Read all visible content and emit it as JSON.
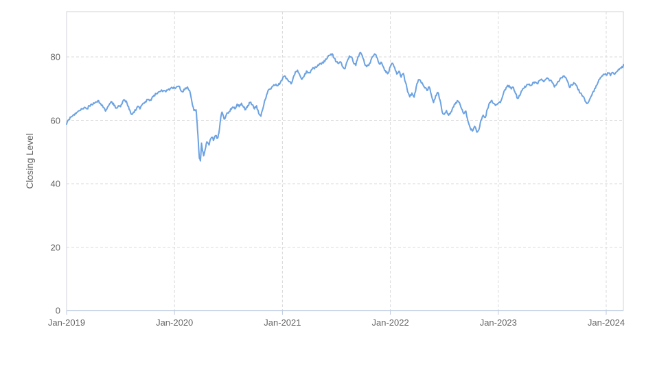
{
  "page": {
    "background": "#ffffff"
  },
  "chart_data": {
    "type": "line",
    "title": "",
    "xlabel": "",
    "ylabel": "Closing Level",
    "series_name": "Closing Level",
    "line_color": "#6ca2e2",
    "grid": "dashed",
    "grid_color": "#d9d9d9",
    "border_color": "#cfd3da",
    "axis_line_color": "#bccadf",
    "label_color": "#666666",
    "legend": "none",
    "ylim": [
      0,
      94.3
    ],
    "y_ticks": [
      0,
      20,
      40,
      60,
      80
    ],
    "x_tick_labels": [
      "Jan-2019",
      "Jan-2020",
      "Jan-2021",
      "Jan-2022",
      "Jan-2023",
      "Jan-2024"
    ],
    "x_tick_years": [
      2019,
      2020,
      2021,
      2022,
      2023,
      2024
    ],
    "x_range_years": [
      2019.0,
      2024.17
    ],
    "noise_amplitude": 0.38,
    "points": [
      [
        2019.0,
        58.8
      ],
      [
        2019.02,
        60.2
      ],
      [
        2019.04,
        61.0
      ],
      [
        2019.06,
        61.6
      ],
      [
        2019.08,
        62.2
      ],
      [
        2019.1,
        62.6
      ],
      [
        2019.13,
        63.2
      ],
      [
        2019.15,
        63.6
      ],
      [
        2019.17,
        64.1
      ],
      [
        2019.19,
        63.6
      ],
      [
        2019.21,
        64.6
      ],
      [
        2019.23,
        65.1
      ],
      [
        2019.25,
        65.5
      ],
      [
        2019.27,
        65.8
      ],
      [
        2019.29,
        66.2
      ],
      [
        2019.31,
        65.4
      ],
      [
        2019.33,
        64.8
      ],
      [
        2019.36,
        62.9
      ],
      [
        2019.38,
        64.2
      ],
      [
        2019.4,
        65.3
      ],
      [
        2019.42,
        65.8
      ],
      [
        2019.44,
        64.6
      ],
      [
        2019.46,
        63.9
      ],
      [
        2019.48,
        64.6
      ],
      [
        2019.5,
        64.3
      ],
      [
        2019.52,
        65.9
      ],
      [
        2019.54,
        66.3
      ],
      [
        2019.56,
        65.4
      ],
      [
        2019.58,
        63.4
      ],
      [
        2019.6,
        61.9
      ],
      [
        2019.62,
        62.6
      ],
      [
        2019.64,
        63.1
      ],
      [
        2019.66,
        64.4
      ],
      [
        2019.68,
        63.6
      ],
      [
        2019.7,
        64.9
      ],
      [
        2019.73,
        65.9
      ],
      [
        2019.75,
        66.5
      ],
      [
        2019.77,
        66.2
      ],
      [
        2019.79,
        67.0
      ],
      [
        2019.81,
        67.9
      ],
      [
        2019.83,
        68.4
      ],
      [
        2019.85,
        68.9
      ],
      [
        2019.87,
        69.1
      ],
      [
        2019.9,
        69.4
      ],
      [
        2019.92,
        69.0
      ],
      [
        2019.94,
        69.7
      ],
      [
        2019.96,
        70.0
      ],
      [
        2019.98,
        70.2
      ],
      [
        2020.0,
        70.3
      ],
      [
        2020.02,
        70.6
      ],
      [
        2020.04,
        70.8
      ],
      [
        2020.06,
        69.3
      ],
      [
        2020.08,
        69.0
      ],
      [
        2020.1,
        70.2
      ],
      [
        2020.12,
        70.5
      ],
      [
        2020.14,
        69.4
      ],
      [
        2020.16,
        66.0
      ],
      [
        2020.18,
        63.1
      ],
      [
        2020.2,
        63.3
      ],
      [
        2020.21,
        59.0
      ],
      [
        2020.22,
        53.5
      ],
      [
        2020.23,
        48.0
      ],
      [
        2020.24,
        47.2
      ],
      [
        2020.25,
        52.8
      ],
      [
        2020.26,
        50.3
      ],
      [
        2020.27,
        48.8
      ],
      [
        2020.29,
        51.6
      ],
      [
        2020.3,
        53.2
      ],
      [
        2020.32,
        52.2
      ],
      [
        2020.33,
        53.8
      ],
      [
        2020.35,
        54.6
      ],
      [
        2020.36,
        53.6
      ],
      [
        2020.38,
        55.2
      ],
      [
        2020.4,
        54.4
      ],
      [
        2020.41,
        55.8
      ],
      [
        2020.43,
        61.2
      ],
      [
        2020.44,
        62.6
      ],
      [
        2020.46,
        60.4
      ],
      [
        2020.48,
        61.8
      ],
      [
        2020.5,
        62.3
      ],
      [
        2020.52,
        63.6
      ],
      [
        2020.54,
        64.2
      ],
      [
        2020.56,
        63.6
      ],
      [
        2020.58,
        65.1
      ],
      [
        2020.6,
        64.3
      ],
      [
        2020.62,
        65.4
      ],
      [
        2020.64,
        64.1
      ],
      [
        2020.66,
        63.4
      ],
      [
        2020.68,
        64.7
      ],
      [
        2020.7,
        65.6
      ],
      [
        2020.72,
        64.9
      ],
      [
        2020.74,
        63.6
      ],
      [
        2020.76,
        64.6
      ],
      [
        2020.78,
        62.2
      ],
      [
        2020.8,
        61.3
      ],
      [
        2020.82,
        63.8
      ],
      [
        2020.84,
        66.5
      ],
      [
        2020.86,
        68.6
      ],
      [
        2020.88,
        69.8
      ],
      [
        2020.9,
        70.4
      ],
      [
        2020.92,
        71.2
      ],
      [
        2020.94,
        71.4
      ],
      [
        2020.96,
        71.0
      ],
      [
        2020.98,
        71.9
      ],
      [
        2021.0,
        73.0
      ],
      [
        2021.02,
        74.0
      ],
      [
        2021.04,
        73.2
      ],
      [
        2021.06,
        72.2
      ],
      [
        2021.08,
        71.5
      ],
      [
        2021.1,
        73.5
      ],
      [
        2021.12,
        75.3
      ],
      [
        2021.14,
        75.8
      ],
      [
        2021.16,
        74.3
      ],
      [
        2021.18,
        72.9
      ],
      [
        2021.21,
        74.8
      ],
      [
        2021.23,
        75.4
      ],
      [
        2021.25,
        75.0
      ],
      [
        2021.27,
        76.0
      ],
      [
        2021.29,
        76.4
      ],
      [
        2021.31,
        76.8
      ],
      [
        2021.33,
        77.5
      ],
      [
        2021.35,
        78.0
      ],
      [
        2021.38,
        78.1
      ],
      [
        2021.4,
        79.3
      ],
      [
        2021.42,
        80.0
      ],
      [
        2021.44,
        80.5
      ],
      [
        2021.46,
        81.0
      ],
      [
        2021.48,
        79.6
      ],
      [
        2021.5,
        78.4
      ],
      [
        2021.52,
        77.9
      ],
      [
        2021.54,
        78.4
      ],
      [
        2021.56,
        76.8
      ],
      [
        2021.58,
        76.3
      ],
      [
        2021.6,
        78.6
      ],
      [
        2021.62,
        80.3
      ],
      [
        2021.64,
        79.9
      ],
      [
        2021.66,
        78.0
      ],
      [
        2021.68,
        77.3
      ],
      [
        2021.7,
        80.0
      ],
      [
        2021.72,
        81.4
      ],
      [
        2021.74,
        80.4
      ],
      [
        2021.76,
        78.0
      ],
      [
        2021.78,
        76.9
      ],
      [
        2021.8,
        77.3
      ],
      [
        2021.82,
        79.0
      ],
      [
        2021.84,
        80.2
      ],
      [
        2021.86,
        80.8
      ],
      [
        2021.88,
        79.6
      ],
      [
        2021.9,
        77.7
      ],
      [
        2021.92,
        78.1
      ],
      [
        2021.94,
        76.5
      ],
      [
        2021.96,
        75.1
      ],
      [
        2021.98,
        74.9
      ],
      [
        2022.0,
        77.0
      ],
      [
        2022.02,
        78.0
      ],
      [
        2022.04,
        76.6
      ],
      [
        2022.06,
        74.6
      ],
      [
        2022.08,
        75.5
      ],
      [
        2022.1,
        73.6
      ],
      [
        2022.12,
        74.8
      ],
      [
        2022.14,
        72.0
      ],
      [
        2022.16,
        69.0
      ],
      [
        2022.18,
        67.4
      ],
      [
        2022.2,
        68.6
      ],
      [
        2022.22,
        67.3
      ],
      [
        2022.24,
        70.6
      ],
      [
        2022.26,
        72.8
      ],
      [
        2022.28,
        72.4
      ],
      [
        2022.3,
        71.4
      ],
      [
        2022.32,
        70.2
      ],
      [
        2022.34,
        69.4
      ],
      [
        2022.36,
        70.5
      ],
      [
        2022.38,
        68.0
      ],
      [
        2022.4,
        65.6
      ],
      [
        2022.42,
        67.8
      ],
      [
        2022.44,
        68.8
      ],
      [
        2022.46,
        66.4
      ],
      [
        2022.48,
        62.6
      ],
      [
        2022.5,
        61.9
      ],
      [
        2022.52,
        63.1
      ],
      [
        2022.54,
        61.6
      ],
      [
        2022.56,
        62.6
      ],
      [
        2022.58,
        64.1
      ],
      [
        2022.6,
        65.1
      ],
      [
        2022.62,
        66.2
      ],
      [
        2022.64,
        65.6
      ],
      [
        2022.66,
        63.6
      ],
      [
        2022.68,
        62.1
      ],
      [
        2022.7,
        62.9
      ],
      [
        2022.72,
        59.6
      ],
      [
        2022.74,
        57.6
      ],
      [
        2022.76,
        56.6
      ],
      [
        2022.78,
        58.1
      ],
      [
        2022.8,
        56.3
      ],
      [
        2022.82,
        57.0
      ],
      [
        2022.84,
        60.0
      ],
      [
        2022.86,
        61.6
      ],
      [
        2022.88,
        60.9
      ],
      [
        2022.9,
        63.6
      ],
      [
        2022.92,
        65.6
      ],
      [
        2022.94,
        66.3
      ],
      [
        2022.96,
        65.3
      ],
      [
        2022.98,
        64.9
      ],
      [
        2023.0,
        65.4
      ],
      [
        2023.02,
        65.6
      ],
      [
        2023.04,
        67.6
      ],
      [
        2023.06,
        69.6
      ],
      [
        2023.08,
        70.6
      ],
      [
        2023.1,
        71.0
      ],
      [
        2023.12,
        69.9
      ],
      [
        2023.14,
        70.4
      ],
      [
        2023.16,
        68.4
      ],
      [
        2023.18,
        66.9
      ],
      [
        2023.2,
        67.8
      ],
      [
        2023.22,
        69.4
      ],
      [
        2023.24,
        70.2
      ],
      [
        2023.26,
        70.9
      ],
      [
        2023.28,
        71.3
      ],
      [
        2023.3,
        71.0
      ],
      [
        2023.32,
        71.9
      ],
      [
        2023.34,
        72.1
      ],
      [
        2023.36,
        71.6
      ],
      [
        2023.38,
        72.5
      ],
      [
        2023.4,
        73.0
      ],
      [
        2023.42,
        72.2
      ],
      [
        2023.44,
        72.9
      ],
      [
        2023.46,
        73.2
      ],
      [
        2023.48,
        72.6
      ],
      [
        2023.5,
        71.9
      ],
      [
        2023.52,
        70.5
      ],
      [
        2023.54,
        71.3
      ],
      [
        2023.56,
        72.2
      ],
      [
        2023.58,
        73.4
      ],
      [
        2023.6,
        73.9
      ],
      [
        2023.62,
        73.5
      ],
      [
        2023.64,
        72.4
      ],
      [
        2023.66,
        70.4
      ],
      [
        2023.68,
        71.2
      ],
      [
        2023.7,
        71.9
      ],
      [
        2023.72,
        71.1
      ],
      [
        2023.74,
        69.6
      ],
      [
        2023.76,
        68.6
      ],
      [
        2023.78,
        67.6
      ],
      [
        2023.8,
        66.6
      ],
      [
        2023.82,
        65.3
      ],
      [
        2023.84,
        66.0
      ],
      [
        2023.86,
        67.6
      ],
      [
        2023.88,
        69.1
      ],
      [
        2023.9,
        70.1
      ],
      [
        2023.92,
        71.6
      ],
      [
        2023.94,
        73.0
      ],
      [
        2023.96,
        74.0
      ],
      [
        2023.98,
        74.5
      ],
      [
        2024.0,
        74.3
      ],
      [
        2024.02,
        74.9
      ],
      [
        2024.04,
        74.1
      ],
      [
        2024.06,
        75.1
      ],
      [
        2024.08,
        74.6
      ],
      [
        2024.1,
        75.4
      ],
      [
        2024.12,
        76.0
      ],
      [
        2024.14,
        76.5
      ],
      [
        2024.16,
        77.3
      ],
      [
        2024.17,
        77.6
      ]
    ]
  }
}
